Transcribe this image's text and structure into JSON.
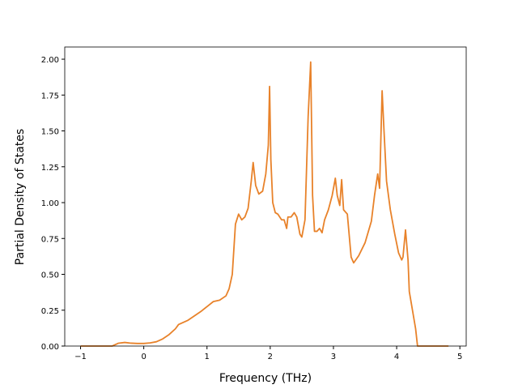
{
  "chart_data": {
    "type": "line",
    "xlabel": "Frequency (THz)",
    "ylabel": "Partial Density of States",
    "color": "#e8822a",
    "x": [
      -1.0,
      -0.5,
      -0.4,
      -0.3,
      -0.2,
      -0.1,
      0,
      0.1,
      0.2,
      0.3,
      0.4,
      0.5,
      0.55,
      0.7,
      0.9,
      1.1,
      1.2,
      1.3,
      1.35,
      1.4,
      1.45,
      1.5,
      1.55,
      1.6,
      1.65,
      1.7,
      1.73,
      1.77,
      1.82,
      1.88,
      1.93,
      1.97,
      1.99,
      2.01,
      2.04,
      2.08,
      2.12,
      2.18,
      2.22,
      2.26,
      2.28,
      2.33,
      2.38,
      2.42,
      2.47,
      2.5,
      2.55,
      2.6,
      2.64,
      2.67,
      2.7,
      2.74,
      2.78,
      2.82,
      2.86,
      2.92,
      2.98,
      3.03,
      3.06,
      3.1,
      3.13,
      3.16,
      3.22,
      3.28,
      3.32,
      3.4,
      3.5,
      3.6,
      3.65,
      3.7,
      3.73,
      3.77,
      3.8,
      3.84,
      3.9,
      3.97,
      4.03,
      4.08,
      4.1,
      4.14,
      4.18,
      4.2,
      4.25,
      4.3,
      4.33,
      4.5,
      4.82
    ],
    "values": [
      0,
      0,
      0.02,
      0.025,
      0.02,
      0.018,
      0.018,
      0.022,
      0.03,
      0.05,
      0.08,
      0.12,
      0.15,
      0.18,
      0.24,
      0.31,
      0.32,
      0.35,
      0.4,
      0.5,
      0.85,
      0.92,
      0.88,
      0.9,
      0.96,
      1.15,
      1.28,
      1.12,
      1.06,
      1.08,
      1.2,
      1.4,
      1.81,
      1.3,
      1.0,
      0.93,
      0.92,
      0.88,
      0.88,
      0.82,
      0.9,
      0.9,
      0.93,
      0.9,
      0.78,
      0.76,
      0.88,
      1.6,
      1.98,
      1.05,
      0.8,
      0.8,
      0.82,
      0.79,
      0.88,
      0.95,
      1.05,
      1.17,
      1.05,
      0.98,
      1.16,
      0.95,
      0.92,
      0.62,
      0.58,
      0.63,
      0.72,
      0.87,
      1.05,
      1.2,
      1.1,
      1.78,
      1.5,
      1.15,
      0.95,
      0.78,
      0.65,
      0.6,
      0.62,
      0.81,
      0.6,
      0.38,
      0.25,
      0.12,
      0,
      0,
      0
    ],
    "xlim": [
      -1.25,
      5.1
    ],
    "ylim": [
      0,
      2.085
    ],
    "xticks": [
      {
        "value": -1,
        "label": "−1"
      },
      0,
      1,
      2,
      3,
      4,
      5
    ],
    "yticks": [
      {
        "value": 0,
        "label": "0.00"
      },
      {
        "value": 0.25,
        "label": "0.25"
      },
      {
        "value": 0.5,
        "label": "0.50"
      },
      {
        "value": 0.75,
        "label": "0.75"
      },
      {
        "value": 1,
        "label": "1.00"
      },
      {
        "value": 1.25,
        "label": "1.25"
      },
      {
        "value": 1.5,
        "label": "1.50"
      },
      {
        "value": 1.75,
        "label": "1.75"
      },
      {
        "value": 2,
        "label": "2.00"
      }
    ]
  }
}
